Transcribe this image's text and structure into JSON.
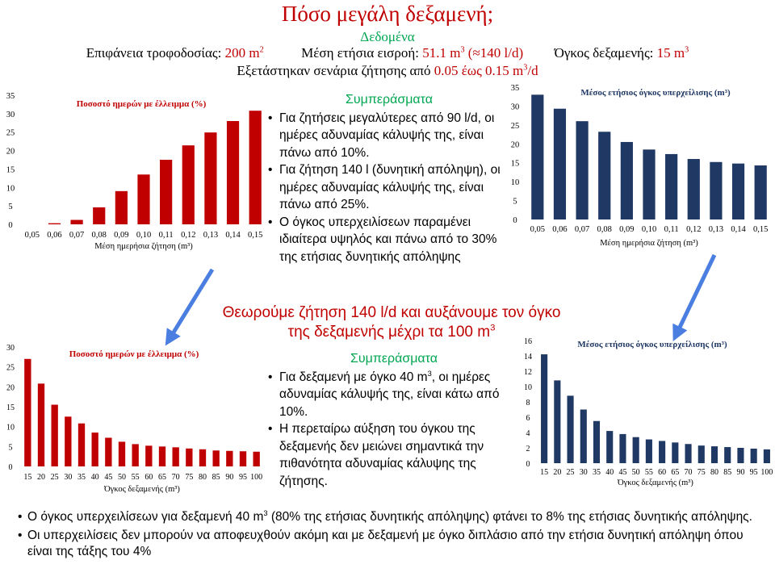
{
  "title": "Πόσο μεγάλη δεξαμενή;",
  "data_header": "Δεδομένα",
  "data_line1": {
    "area_label": "Επιφάνεια τροφοδοσίας: ",
    "area_value": "200 m",
    "inflow_label": "Μέση ετήσια εισροή: ",
    "inflow_value": "51.1 m",
    "inflow_paren": " (≈140 l/d)",
    "tank_label": "Όγκος δεξαμενής: ",
    "tank_value": "15 m"
  },
  "data_line2": {
    "text": "Εξετάστηκαν σενάρια ζήτησης από ",
    "range": "0.05 έως 0.15 m",
    "suffix": "/d"
  },
  "conclusions1": {
    "title": "Συμπεράσματα",
    "bullets": [
      "Για ζητήσεις μεγαλύτερες από  90 l/d, οι ημέρες αδυναμίας κάλυψής της, είναι πάνω από 10%.",
      "Για ζήτηση 140 l (δυνητική απόληψη), οι ημέρες αδυναμίας κάλυψής της, είναι πάνω από 25%.",
      "Ο όγκος υπερχειλίσεων παραμένει ιδιαίτερα υψηλός και πάνω από το 30% της ετήσιας δυνητικής απόληψης"
    ]
  },
  "middle_note": {
    "line1": "Θεωρούμε ζήτηση 140 l/d και αυξάνουμε τον όγκο",
    "line2": "της δεξαμενής μέχρι τα 100 m"
  },
  "conclusions2": {
    "title": "Συμπεράσματα",
    "bullet1_a": "Για δεξαμενή με όγκο 40 m",
    "bullet1_b": ", οι ημέρες αδυναμίας κάλυψής της, είναι κάτω από 10%.",
    "bullet2": "Η περεταίρω αύξηση του όγκου της δεξαμενής  δεν μειώνει σημαντικά την πιθανότητα αδυναμίας κάλυψης της ζήτησης."
  },
  "bottom_bullets": {
    "b1_a": "Ο όγκος υπερχειλίσεων για δεξαμενή 40 m",
    "b1_b": " (80% της ετήσιας δυνητικής απόληψης) φτάνει το 8% της ετήσιας δυνητικής απόληψης.",
    "b2": "Οι υπερχειλίσεις δεν μπορούν να αποφευχθούν ακόμη και με δεξαμενή με όγκο διπλάσιο από την ετήσια δυνητική απόληψη όπου είναι της τάξης του 4%"
  },
  "colors": {
    "title_red": "#c00000",
    "header_green": "#00a651",
    "bar_red": "#c00000",
    "bar_navy": "#1f3864",
    "arrow_blue": "#4a7ee0"
  },
  "chart_data": [
    {
      "type": "bar",
      "title": "Ποσοστό ημερών με έλλειμμα (%)",
      "xlabel": "Μέση ημερήσια ζήτηση (m³)",
      "ylabel": "",
      "categories": [
        "0,05",
        "0,06",
        "0,07",
        "0,08",
        "0,09",
        "0,10",
        "0,11",
        "0,12",
        "0,13",
        "0,14",
        "0,15"
      ],
      "values": [
        0,
        0.3,
        1.2,
        4.6,
        9.0,
        13.5,
        17.5,
        21.4,
        24.9,
        28.0,
        30.8
      ],
      "ylim": [
        0,
        35
      ],
      "yticks": [
        0,
        5,
        10,
        15,
        20,
        25,
        30,
        35
      ],
      "color": "#c00000"
    },
    {
      "type": "bar",
      "title": "Μέσος ετήσιος όγκος υπερχείλισης (m³)",
      "xlabel": "Μέση ημερήσια ζήτηση (m³)",
      "ylabel": "",
      "categories": [
        "0,05",
        "0,06",
        "0,07",
        "0,08",
        "0,09",
        "0,10",
        "0,11",
        "0,12",
        "0,13",
        "0,14",
        "0,15"
      ],
      "values": [
        33.0,
        29.3,
        26.0,
        23.2,
        20.5,
        18.5,
        17.3,
        16.0,
        15.2,
        14.8,
        14.3
      ],
      "ylim": [
        0,
        35
      ],
      "yticks": [
        0,
        5,
        10,
        15,
        20,
        25,
        30,
        35
      ],
      "color": "#1f3864"
    },
    {
      "type": "bar",
      "title": "Ποσοστό ημερών με έλλειμμα (%)",
      "xlabel": "Όγκος δεξαμενής (m³)",
      "ylabel": "",
      "categories": [
        "15",
        "20",
        "25",
        "30",
        "35",
        "40",
        "45",
        "50",
        "55",
        "60",
        "65",
        "70",
        "75",
        "80",
        "85",
        "90",
        "95",
        "100"
      ],
      "values": [
        27.0,
        20.8,
        15.5,
        12.5,
        10.8,
        8.5,
        7.2,
        6.2,
        5.6,
        5.2,
        5.0,
        4.8,
        4.5,
        4.3,
        4.0,
        3.9,
        3.8,
        3.7
      ],
      "ylim": [
        0,
        30
      ],
      "yticks": [
        0,
        5,
        10,
        15,
        20,
        25,
        30
      ],
      "color": "#c00000"
    },
    {
      "type": "bar",
      "title": "Μέσος ετήσιος όγκος υπερχείλισης (m³)",
      "xlabel": "Όγκος δεξαμενής (m³)",
      "ylabel": "",
      "categories": [
        "15",
        "20",
        "25",
        "30",
        "35",
        "40",
        "45",
        "50",
        "55",
        "60",
        "65",
        "70",
        "75",
        "80",
        "85",
        "90",
        "95",
        "100"
      ],
      "values": [
        14.2,
        10.8,
        8.8,
        7.0,
        5.5,
        4.2,
        3.8,
        3.4,
        3.1,
        2.9,
        2.7,
        2.5,
        2.3,
        2.2,
        2.1,
        2.0,
        1.9,
        1.8
      ],
      "ylim": [
        0,
        16
      ],
      "yticks": [
        0,
        2,
        4,
        6,
        8,
        10,
        12,
        14,
        16
      ],
      "color": "#1f3864"
    }
  ]
}
